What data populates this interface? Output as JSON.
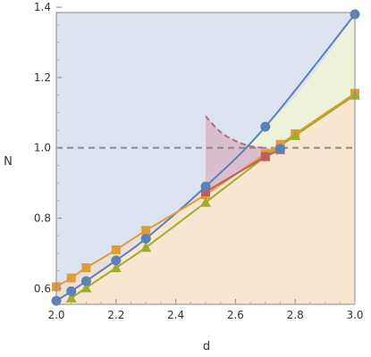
{
  "chart_data": {
    "type": "line",
    "title": "",
    "xlabel": "d",
    "ylabel": "N",
    "xlim": [
      2.0,
      3.0
    ],
    "ylim": [
      0.555,
      1.385
    ],
    "xticks": [
      "2.0",
      "2.2",
      "2.4",
      "2.6",
      "2.8",
      "3.0"
    ],
    "xtick_values": [
      2.0,
      2.2,
      2.4,
      2.6,
      2.8,
      3.0
    ],
    "yticks": [
      "0.6",
      "0.8",
      "1.0",
      "1.2",
      "1.4"
    ],
    "ytick_values": [
      0.6,
      0.8,
      1.0,
      1.2,
      1.4
    ],
    "grid": false,
    "reference_line": {
      "y": 1.0,
      "style": "dashed",
      "color": "#8a8a8a"
    },
    "series": [
      {
        "marker": "circle",
        "color": "#5b82b5",
        "x": [
          2.0,
          2.05,
          2.1,
          2.2,
          2.3,
          2.5,
          2.7,
          2.75,
          3.0
        ],
        "y": [
          0.565,
          0.592,
          0.621,
          0.68,
          0.742,
          0.89,
          1.06,
          0.997,
          1.38
        ]
      },
      {
        "marker": "square",
        "color": "#e19c3a",
        "x": [
          2.0,
          2.05,
          2.1,
          2.2,
          2.3,
          2.5,
          2.7,
          2.75,
          2.8,
          3.0
        ],
        "y": [
          0.605,
          0.63,
          0.659,
          0.71,
          0.765,
          0.867,
          0.983,
          1.01,
          1.04,
          1.155
        ]
      },
      {
        "marker": "triangle",
        "color": "#9fad2c",
        "x": [
          2.05,
          2.1,
          2.2,
          2.3,
          2.5,
          2.7,
          2.8,
          3.0
        ],
        "y": [
          0.573,
          0.602,
          0.659,
          0.717,
          0.845,
          0.975,
          1.035,
          1.15
        ]
      },
      {
        "marker": "square",
        "color": "#c45b5b",
        "x": [
          2.5,
          2.7,
          2.75
        ],
        "y": [
          0.875,
          0.975,
          0.995
        ]
      }
    ],
    "regions": [
      {
        "color": "#dde3f0"
      },
      {
        "color": "#f9e6d0"
      },
      {
        "color": "#eef2d8"
      },
      {
        "color": "#eadfd9"
      },
      {
        "color": "#d9b9c9"
      }
    ],
    "dashed_curve": {
      "color": "#b76b82",
      "x": [
        2.5,
        2.55,
        2.6,
        2.65,
        2.7
      ],
      "y": [
        1.09,
        1.045,
        1.02,
        1.005,
        1.0
      ]
    }
  }
}
